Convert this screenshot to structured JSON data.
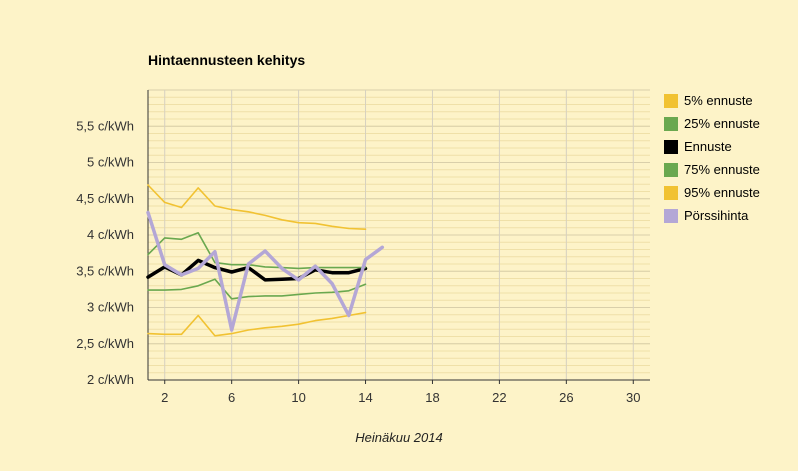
{
  "chart_data": {
    "type": "line",
    "title": "Hintaennusteen kehitys",
    "xlabel": "Heinäkuu 2014",
    "ylabel": "",
    "xlim": [
      1,
      31
    ],
    "ylim": [
      2,
      6
    ],
    "x_ticks": [
      2,
      6,
      10,
      14,
      18,
      22,
      26,
      30
    ],
    "y_ticks": [
      {
        "value": 2,
        "label": "2 c/kWh"
      },
      {
        "value": 2.5,
        "label": "2,5 c/kWh"
      },
      {
        "value": 3,
        "label": "3 c/kWh"
      },
      {
        "value": 3.5,
        "label": "3,5 c/kWh"
      },
      {
        "value": 4,
        "label": "4 c/kWh"
      },
      {
        "value": 4.5,
        "label": "4,5 c/kWh"
      },
      {
        "value": 5,
        "label": "5 c/kWh"
      },
      {
        "value": 5.5,
        "label": "5,5 c/kWh"
      }
    ],
    "grid": true,
    "legend_position": "right",
    "series": [
      {
        "name": "5% ennuste",
        "color": "#f1c232",
        "width": 1.6,
        "x": [
          1,
          2,
          3,
          4,
          5,
          6,
          7,
          8,
          9,
          10,
          11,
          12,
          13,
          14
        ],
        "y": [
          2.64,
          2.63,
          2.63,
          2.89,
          2.61,
          2.64,
          2.69,
          2.72,
          2.74,
          2.77,
          2.82,
          2.85,
          2.89,
          2.93
        ]
      },
      {
        "name": "25% ennuste",
        "color": "#6aa84f",
        "width": 1.6,
        "x": [
          1,
          2,
          3,
          4,
          5,
          6,
          7,
          8,
          9,
          10,
          11,
          12,
          13,
          14
        ],
        "y": [
          3.24,
          3.24,
          3.25,
          3.3,
          3.39,
          3.12,
          3.15,
          3.16,
          3.16,
          3.18,
          3.2,
          3.21,
          3.23,
          3.32
        ]
      },
      {
        "name": "Ennuste",
        "color": "#000000",
        "width": 3.5,
        "x": [
          1,
          2,
          3,
          4,
          5,
          6,
          7,
          8,
          9,
          10,
          11,
          12,
          13,
          14
        ],
        "y": [
          3.42,
          3.56,
          3.45,
          3.65,
          3.55,
          3.49,
          3.55,
          3.38,
          3.39,
          3.4,
          3.52,
          3.48,
          3.48,
          3.54
        ]
      },
      {
        "name": "75% ennuste",
        "color": "#6aa84f",
        "width": 1.6,
        "x": [
          1,
          2,
          3,
          4,
          5,
          6,
          7,
          8,
          9,
          10,
          11,
          12,
          13,
          14
        ],
        "y": [
          3.73,
          3.96,
          3.94,
          4.03,
          3.62,
          3.59,
          3.59,
          3.56,
          3.55,
          3.54,
          3.55,
          3.55,
          3.55,
          3.55
        ]
      },
      {
        "name": "95% ennuste",
        "color": "#f1c232",
        "width": 1.6,
        "x": [
          1,
          2,
          3,
          4,
          5,
          6,
          7,
          8,
          9,
          10,
          11,
          12,
          13,
          14
        ],
        "y": [
          4.69,
          4.45,
          4.38,
          4.65,
          4.4,
          4.35,
          4.32,
          4.27,
          4.21,
          4.17,
          4.16,
          4.12,
          4.09,
          4.08
        ]
      },
      {
        "name": "Pörssihinta",
        "color": "#b4a7d6",
        "width": 3.5,
        "x": [
          1,
          2,
          3,
          4,
          5,
          6,
          7,
          8,
          9,
          10,
          11,
          12,
          13,
          14,
          15
        ],
        "y": [
          4.31,
          3.59,
          3.45,
          3.54,
          3.77,
          2.69,
          3.6,
          3.78,
          3.54,
          3.38,
          3.57,
          3.33,
          2.89,
          3.66,
          3.83
        ]
      }
    ]
  }
}
